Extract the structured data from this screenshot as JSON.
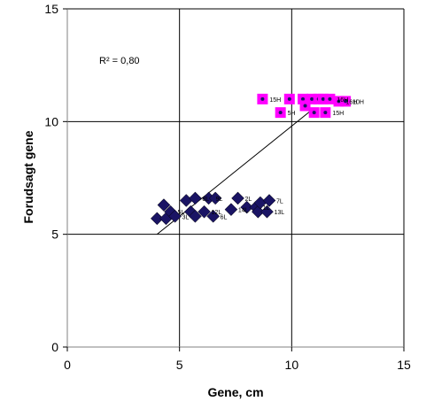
{
  "chart_data": {
    "type": "scatter",
    "title": "",
    "xlabel": "Gene, cm",
    "ylabel": "Forudsagt gene",
    "xlim": [
      0,
      15
    ],
    "ylim": [
      0,
      15
    ],
    "xticks": [
      0,
      5,
      10,
      15
    ],
    "yticks": [
      0,
      5,
      10,
      15
    ],
    "grid": true,
    "annotation": "R² = 0,80",
    "colors": {
      "low": "#1a1464",
      "high": "#ff00ff",
      "high_center": "#1a1464",
      "line": "#000000",
      "grid": "#000000"
    },
    "series": [
      {
        "marker": "diamond",
        "points": [
          {
            "x": 4.0,
            "y": 5.7,
            "label": ""
          },
          {
            "x": 4.3,
            "y": 6.3,
            "label": ""
          },
          {
            "x": 4.4,
            "y": 5.7,
            "label": ""
          },
          {
            "x": 4.6,
            "y": 6.0,
            "label": "5L"
          },
          {
            "x": 4.8,
            "y": 5.8,
            "label": "3L"
          },
          {
            "x": 5.3,
            "y": 6.5,
            "label": ""
          },
          {
            "x": 5.5,
            "y": 6.0,
            "label": ""
          },
          {
            "x": 5.7,
            "y": 6.6,
            "label": "8L"
          },
          {
            "x": 5.7,
            "y": 5.8,
            "label": ""
          },
          {
            "x": 6.1,
            "y": 6.0,
            "label": "12L"
          },
          {
            "x": 6.3,
            "y": 6.6,
            "label": "9L"
          },
          {
            "x": 6.5,
            "y": 5.8,
            "label": "6L"
          },
          {
            "x": 6.6,
            "y": 6.6,
            "label": ""
          },
          {
            "x": 7.3,
            "y": 6.1,
            "label": "14L"
          },
          {
            "x": 7.6,
            "y": 6.6,
            "label": "2L"
          },
          {
            "x": 8.0,
            "y": 6.2,
            "label": ""
          },
          {
            "x": 8.4,
            "y": 6.2,
            "label": "1L"
          },
          {
            "x": 8.5,
            "y": 6.0,
            "label": ""
          },
          {
            "x": 8.6,
            "y": 6.4,
            "label": ""
          },
          {
            "x": 8.9,
            "y": 6.0,
            "label": "13L"
          },
          {
            "x": 9.0,
            "y": 6.5,
            "label": "7L"
          }
        ]
      },
      {
        "marker": "square",
        "points": [
          {
            "x": 8.7,
            "y": 11.0,
            "label": "15H"
          },
          {
            "x": 9.5,
            "y": 10.4,
            "label": "5H"
          },
          {
            "x": 9.9,
            "y": 11.0,
            "label": ""
          },
          {
            "x": 10.5,
            "y": 11.0,
            "label": ""
          },
          {
            "x": 10.6,
            "y": 10.7,
            "label": ""
          },
          {
            "x": 10.9,
            "y": 11.0,
            "label": ""
          },
          {
            "x": 11.0,
            "y": 10.4,
            "label": ""
          },
          {
            "x": 11.2,
            "y": 11.0,
            "label": ""
          },
          {
            "x": 11.4,
            "y": 11.0,
            "label": ""
          },
          {
            "x": 11.5,
            "y": 10.4,
            "label": "15H"
          },
          {
            "x": 11.7,
            "y": 11.0,
            "label": "16H"
          },
          {
            "x": 12.1,
            "y": 10.9,
            "label": "16H"
          },
          {
            "x": 12.4,
            "y": 10.9,
            "label": "10H"
          }
        ]
      }
    ],
    "trendline": {
      "x": [
        4.0,
        11.0
      ],
      "y": [
        5.0,
        10.6
      ]
    }
  }
}
